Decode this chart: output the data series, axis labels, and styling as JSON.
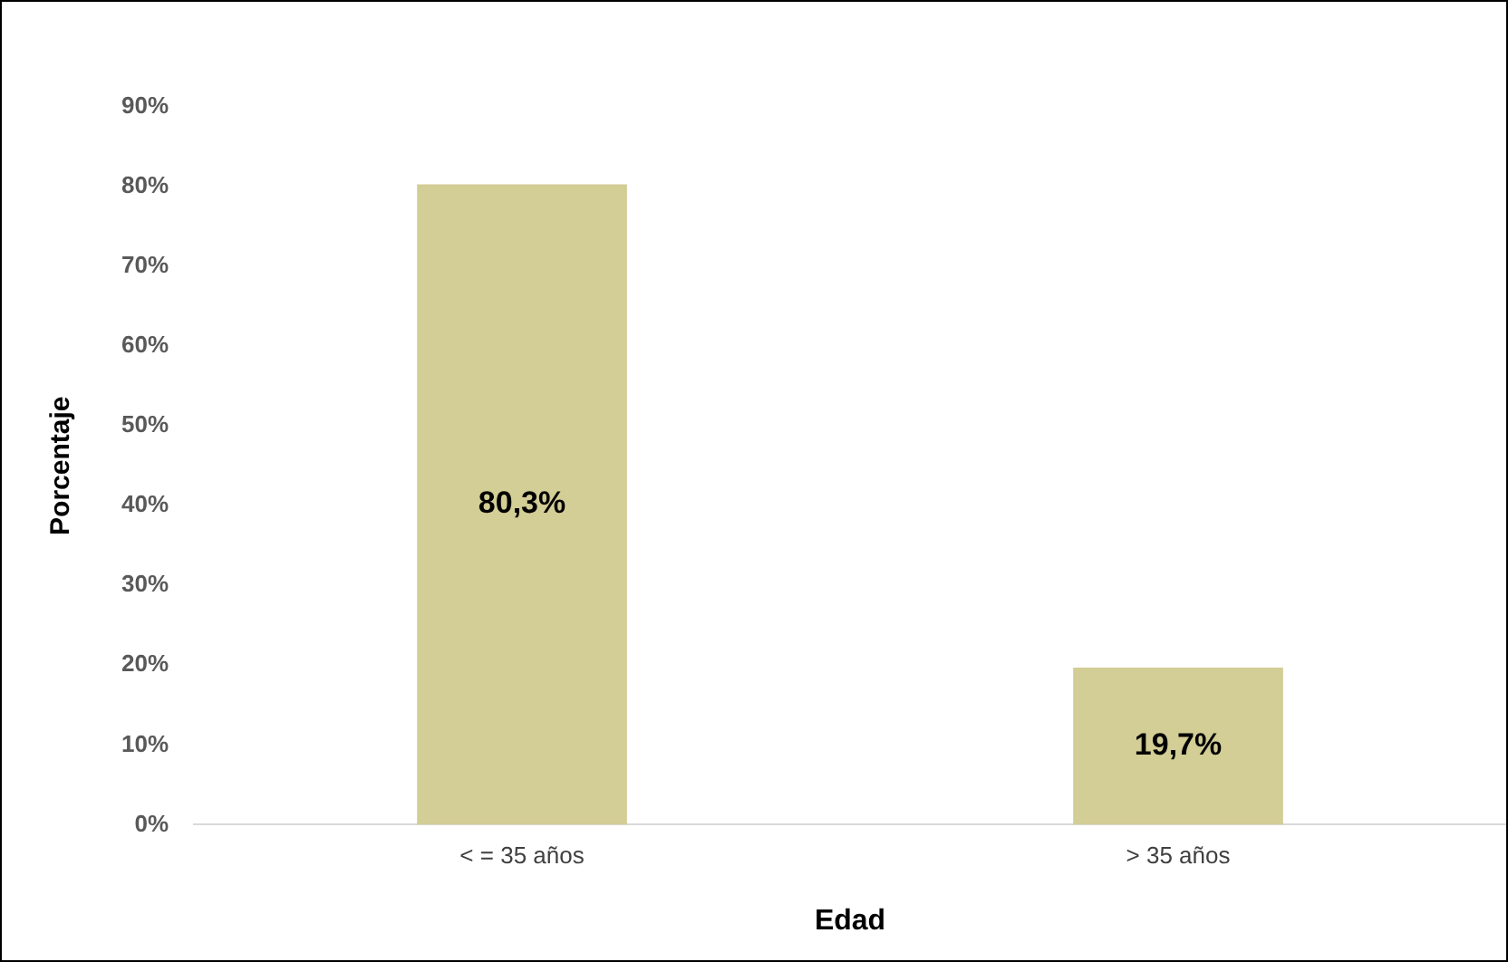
{
  "chart_data": {
    "type": "bar",
    "xlabel": "Edad",
    "ylabel": "Porcentaje",
    "categories": [
      "< = 35 años",
      "> 35 años"
    ],
    "series": [
      {
        "color": "#d3cd96",
        "values": [
          80.3,
          19.7
        ],
        "value_labels": [
          "80,3%",
          "19,7%"
        ]
      }
    ],
    "ylim": [
      0,
      90
    ],
    "yticks": [
      {
        "value": 0,
        "label": "0%"
      },
      {
        "value": 10,
        "label": "10%"
      },
      {
        "value": 20,
        "label": "20%"
      },
      {
        "value": 30,
        "label": "30%"
      },
      {
        "value": 40,
        "label": "40%"
      },
      {
        "value": 50,
        "label": "50%"
      },
      {
        "value": 60,
        "label": "60%"
      },
      {
        "value": 70,
        "label": "70%"
      },
      {
        "value": 80,
        "label": "80%"
      },
      {
        "value": 90,
        "label": "90%"
      }
    ],
    "grid": false,
    "legend": false
  }
}
